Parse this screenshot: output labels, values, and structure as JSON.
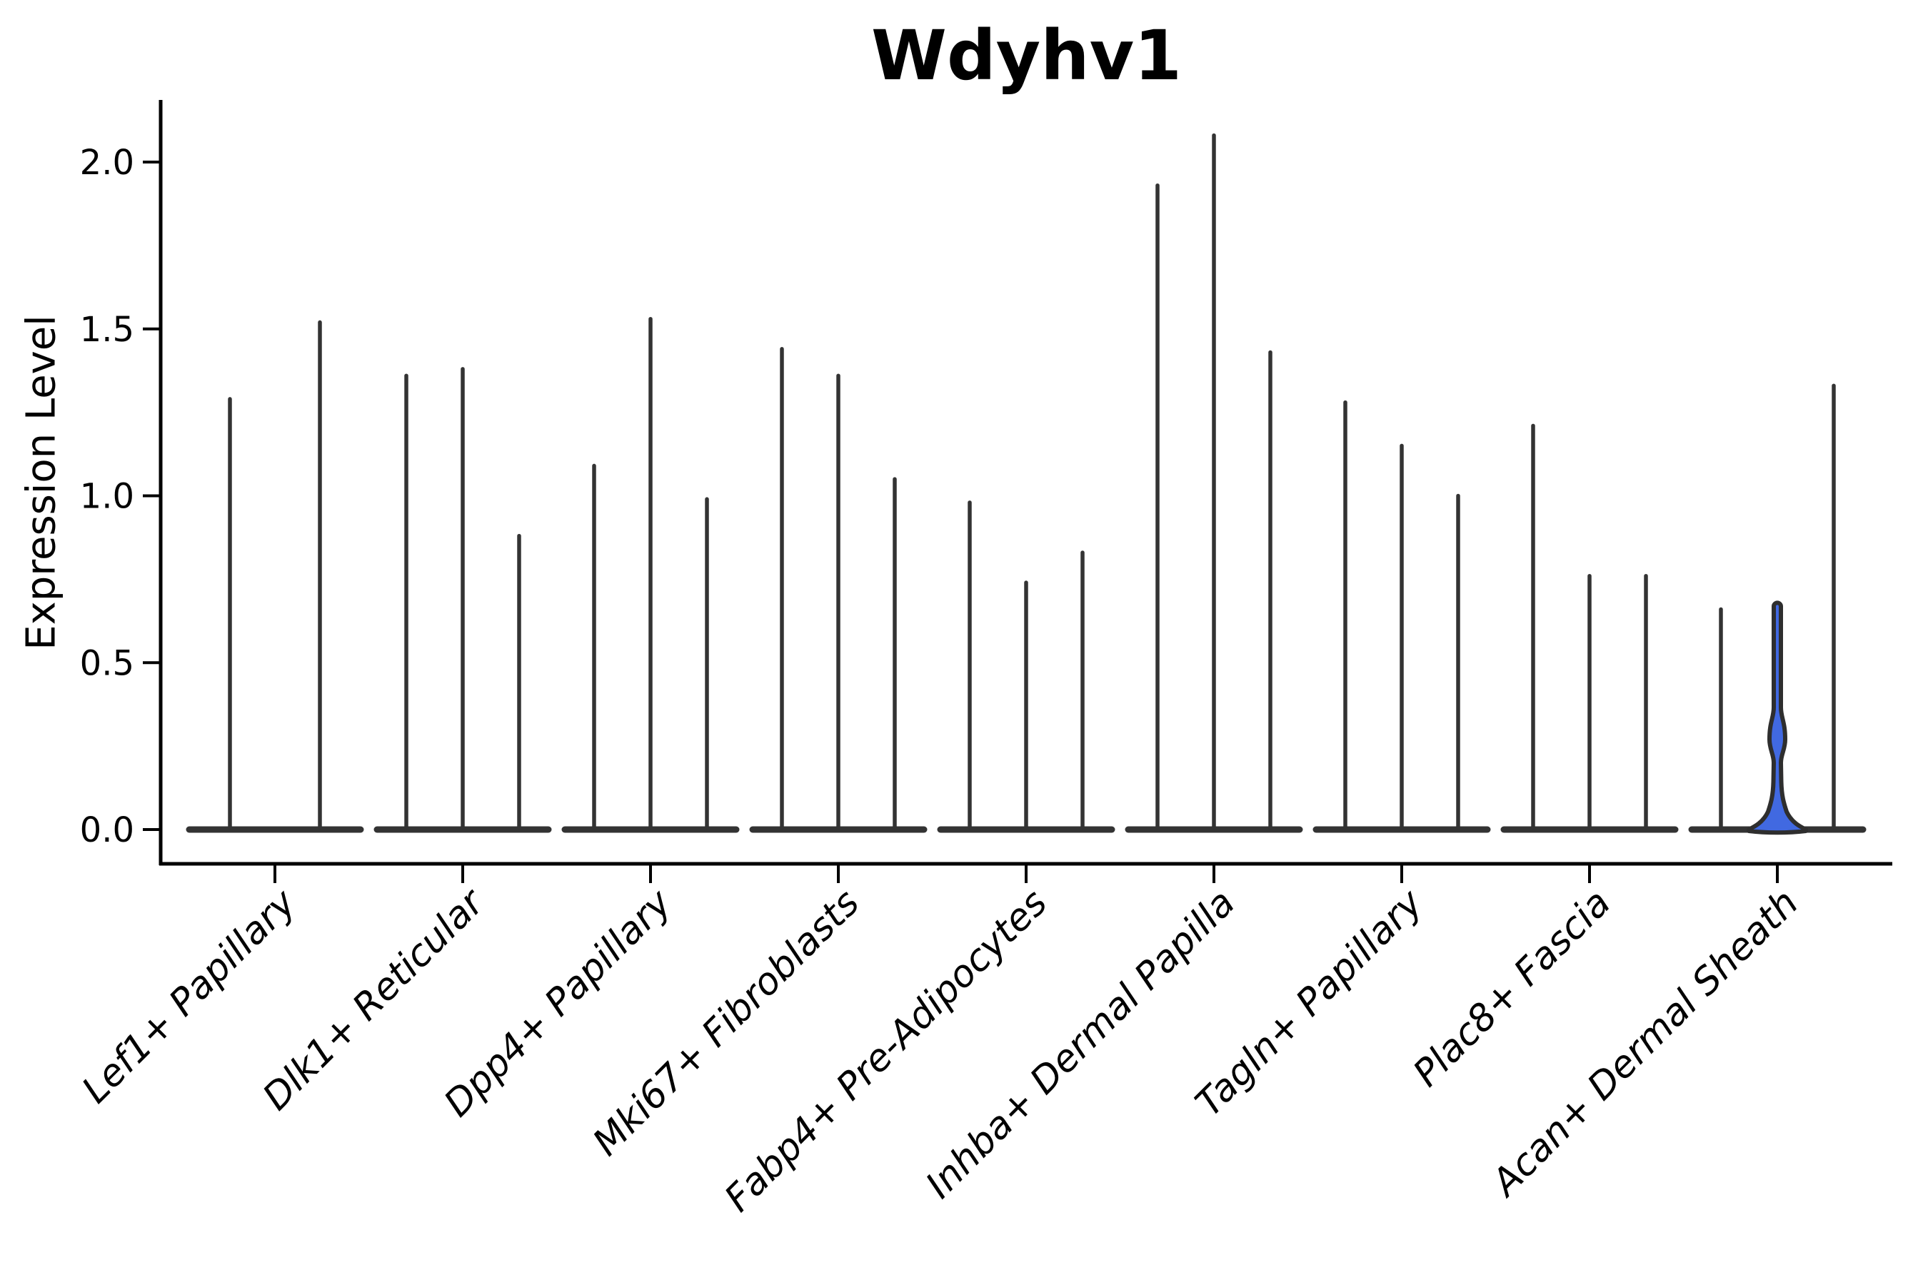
{
  "figure": {
    "title": "Wdyhv1"
  },
  "chart_data": {
    "type": "violin",
    "title": "Wdyhv1",
    "xlabel": "",
    "ylabel": "Expression Level",
    "ylim": [
      -0.08,
      2.18
    ],
    "yticks": [
      0.0,
      0.5,
      1.0,
      1.5,
      2.0
    ],
    "ytick_labels": [
      "0.0",
      "0.5",
      "1.0",
      "1.5",
      "2.0"
    ],
    "grid": false,
    "legend": null,
    "description": "Needle-thin violins: density is concentrated at 0 (flat dark base lens per group) with a thin spike up to each violin's maximum expression value. One violin (middle of Acan+ Dermal Sheath) is filled blue with a visible density bulge near 0.27.",
    "categories": [
      "Lef1+ Papillary",
      "Dlk1+ Reticular",
      "Dpp4+ Papillary",
      "Mki67+ Fibroblasts",
      "Fabp4+ Pre-Adipocytes",
      "Inhba+ Dermal Papilla",
      "Tagln+ Papillary",
      "Plac8+ Fascia",
      "Acan+ Dermal Sheath"
    ],
    "groups": [
      {
        "category": "Lef1+ Papillary",
        "violins": [
          {
            "max": 1.29
          },
          {
            "max": 1.52
          }
        ]
      },
      {
        "category": "Dlk1+ Reticular",
        "violins": [
          {
            "max": 1.36
          },
          {
            "max": 1.38
          },
          {
            "max": 0.88
          }
        ]
      },
      {
        "category": "Dpp4+ Papillary",
        "violins": [
          {
            "max": 1.09
          },
          {
            "max": 1.53
          },
          {
            "max": 0.99
          }
        ]
      },
      {
        "category": "Mki67+ Fibroblasts",
        "violins": [
          {
            "max": 1.44
          },
          {
            "max": 1.36
          },
          {
            "max": 1.05
          }
        ]
      },
      {
        "category": "Fabp4+ Pre-Adipocytes",
        "violins": [
          {
            "max": 0.98
          },
          {
            "max": 0.74
          },
          {
            "max": 0.83
          }
        ]
      },
      {
        "category": "Inhba+ Dermal Papilla",
        "violins": [
          {
            "max": 1.93
          },
          {
            "max": 2.08
          },
          {
            "max": 1.43
          }
        ]
      },
      {
        "category": "Tagln+ Papillary",
        "violins": [
          {
            "max": 1.28
          },
          {
            "max": 1.15
          },
          {
            "max": 1.0
          }
        ]
      },
      {
        "category": "Plac8+ Fascia",
        "violins": [
          {
            "max": 1.21
          },
          {
            "max": 0.76
          },
          {
            "max": 0.76
          }
        ]
      },
      {
        "category": "Acan+ Dermal Sheath",
        "violins": [
          {
            "max": 0.66
          },
          {
            "max": 0.69,
            "highlighted": true,
            "bulge_center": 0.27,
            "bulge_span": [
              0.2,
              0.34
            ]
          },
          {
            "max": 1.33
          }
        ]
      }
    ],
    "colors": {
      "violin_edge": "#333333",
      "highlight_fill": "#4169e1",
      "highlight_edge": "#2e2e2e",
      "axis": "#000000",
      "text": "#000000",
      "background": "#ffffff"
    }
  }
}
